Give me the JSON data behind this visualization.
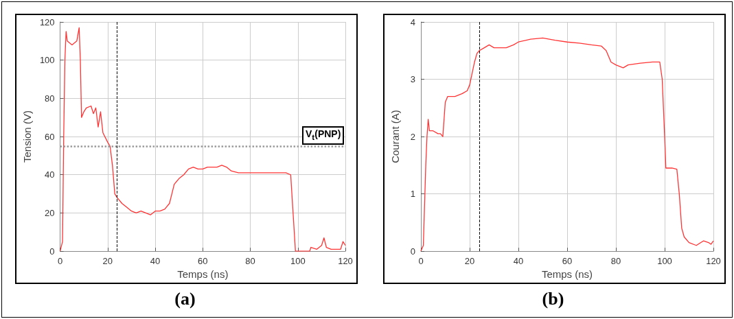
{
  "chart_data": [
    {
      "type": "line",
      "title": "(a)",
      "xlabel": "Temps (ns)",
      "ylabel": "Tension (V)",
      "series": [
        {
          "color": "#ff3333",
          "x": [
            0,
            1,
            1.5,
            2,
            2.5,
            3,
            5,
            7,
            8,
            8.5,
            9,
            10,
            11,
            13,
            14,
            15,
            16,
            17,
            18,
            20,
            21,
            22,
            23,
            24,
            26,
            28,
            30,
            32,
            34,
            36,
            38,
            40,
            42,
            44,
            46,
            47,
            48,
            50,
            52,
            54,
            56,
            58,
            60,
            62,
            64,
            66,
            68,
            70,
            72,
            75,
            80,
            85,
            90,
            95,
            97,
            98,
            99,
            105,
            105.5,
            108,
            110,
            111,
            112,
            114,
            118,
            119,
            120
          ],
          "values": [
            0,
            5,
            60,
            100,
            115,
            110,
            108,
            110,
            117,
            100,
            70,
            73,
            75,
            76,
            72,
            75,
            65,
            73,
            62,
            57,
            55,
            45,
            30,
            28,
            25,
            23,
            21,
            20,
            21,
            20,
            19,
            21,
            21,
            22,
            25,
            30,
            35,
            38,
            40,
            43,
            44,
            43,
            43,
            44,
            44,
            44,
            45,
            44,
            42,
            41,
            41,
            41,
            41,
            41,
            40,
            20,
            0,
            0,
            2,
            1,
            3,
            7,
            2,
            1,
            1,
            5,
            3
          ]
        }
      ],
      "xlim": [
        0,
        120
      ],
      "xticks": [
        0,
        20,
        40,
        60,
        80,
        100,
        120
      ],
      "ylim": [
        0,
        120
      ],
      "yticks": [
        0,
        20,
        40,
        60,
        80,
        100,
        120
      ],
      "grid": true,
      "ref_lines": [
        {
          "axis": "x",
          "value": 24,
          "color": "#000000",
          "line_style": "dashed"
        },
        {
          "axis": "y",
          "value": 55,
          "label": "V$_{t}$(PNP)",
          "color": "#999999",
          "line_style": "dotted"
        }
      ]
    },
    {
      "type": "line",
      "title": "(b)",
      "xlabel": "Temps (ns)",
      "ylabel": "Courant (A)",
      "series": [
        {
          "color": "#ff3333",
          "x": [
            0,
            1,
            2,
            2.5,
            3,
            3.5,
            5,
            7,
            8,
            9,
            10,
            11,
            14,
            17,
            19,
            20,
            21,
            22,
            23,
            24,
            26,
            28,
            30,
            32,
            35,
            38,
            40,
            45,
            50,
            55,
            60,
            65,
            70,
            74,
            76,
            78,
            80,
            83,
            85,
            90,
            95,
            98,
            99,
            100,
            100.5,
            103,
            105,
            106,
            107,
            108,
            110,
            113,
            116,
            118,
            119,
            120
          ],
          "values": [
            0,
            0.1,
            1.5,
            2,
            2.3,
            2.1,
            2.1,
            2.05,
            2.05,
            2,
            2.6,
            2.7,
            2.7,
            2.75,
            2.8,
            2.9,
            3.1,
            3.3,
            3.45,
            3.5,
            3.55,
            3.6,
            3.55,
            3.55,
            3.55,
            3.6,
            3.65,
            3.7,
            3.72,
            3.68,
            3.65,
            3.63,
            3.6,
            3.58,
            3.5,
            3.3,
            3.25,
            3.2,
            3.25,
            3.28,
            3.3,
            3.3,
            3,
            2,
            1.45,
            1.45,
            1.43,
            1,
            0.4,
            0.25,
            0.15,
            0.1,
            0.18,
            0.15,
            0.12,
            0.18
          ]
        }
      ],
      "xlim": [
        0,
        120
      ],
      "xticks": [
        0,
        20,
        40,
        60,
        80,
        100,
        120
      ],
      "ylim": [
        0,
        4
      ],
      "yticks": [
        0,
        1,
        2,
        3,
        4
      ],
      "grid": true,
      "ref_lines": [
        {
          "axis": "x",
          "value": 24,
          "color": "#000000",
          "line_style": "dashed"
        }
      ]
    }
  ]
}
